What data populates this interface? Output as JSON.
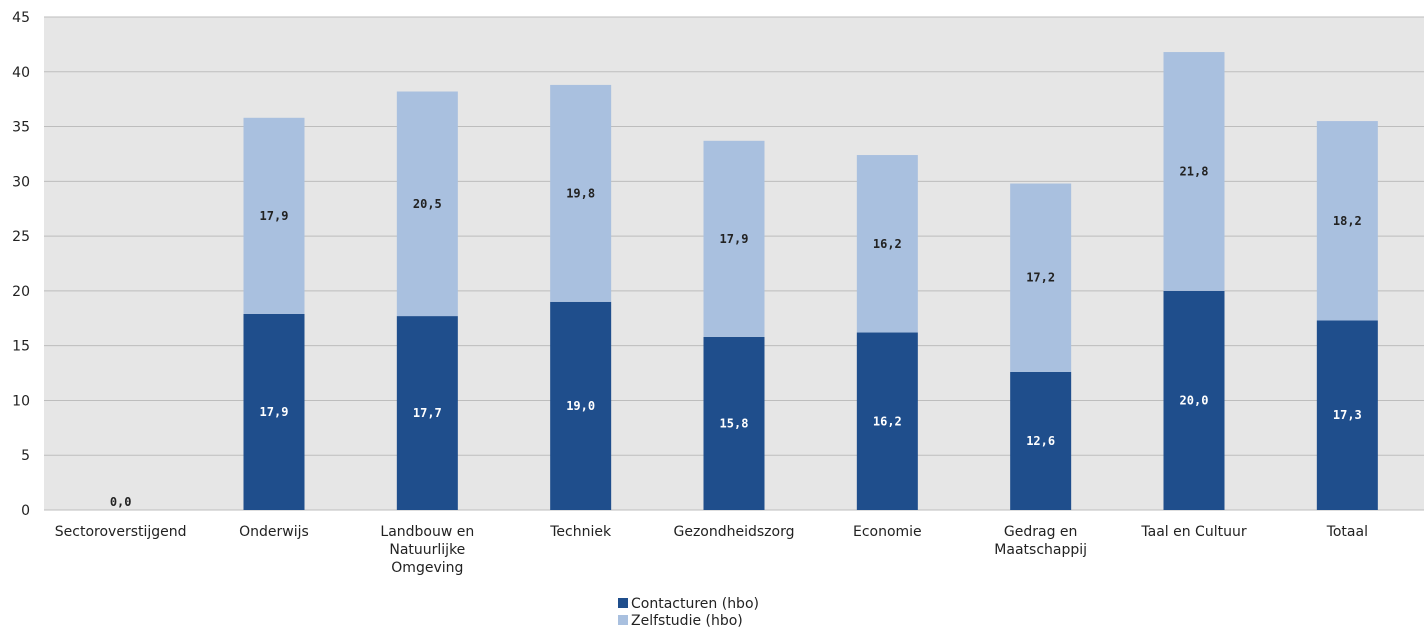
{
  "chart_data": {
    "type": "bar",
    "stacked": true,
    "categories": [
      "Sectoroverstijgend",
      "Onderwijs",
      "Landbouw en Natuurlijke Omgeving",
      "Techniek",
      "Gezondheidszorg",
      "Economie",
      "Gedrag en Maatschappij",
      "Taal en Cultuur",
      "Totaal"
    ],
    "category_lines": [
      [
        "Sectoroverstijgend"
      ],
      [
        "Onderwijs"
      ],
      [
        "Landbouw en",
        "Natuurlijke",
        "Omgeving"
      ],
      [
        "Techniek"
      ],
      [
        "Gezondheidszorg"
      ],
      [
        "Economie"
      ],
      [
        "Gedrag en",
        "Maatschappij"
      ],
      [
        "Taal en Cultuur"
      ],
      [
        "Totaal"
      ]
    ],
    "series": [
      {
        "name": "Contacturen (hbo)",
        "color": "#1f4e8c",
        "label_color": "#ffffff",
        "values": [
          0.0,
          17.9,
          17.7,
          19.0,
          15.8,
          16.2,
          12.6,
          20.0,
          17.3
        ],
        "labels": [
          "0,0",
          "17,9",
          "17,7",
          "19,0",
          "15,8",
          "16,2",
          "12,6",
          "20,0",
          "17,3"
        ]
      },
      {
        "name": "Zelfstudie (hbo)",
        "color": "#a9c0df",
        "label_color": "#222222",
        "values": [
          0.0,
          17.9,
          20.5,
          19.8,
          17.9,
          16.2,
          17.2,
          21.8,
          18.2
        ],
        "labels": [
          "",
          "17,9",
          "20,5",
          "19,8",
          "17,9",
          "16,2",
          "17,2",
          "21,8",
          "18,2"
        ]
      }
    ],
    "yticks": [
      "0",
      "5",
      "10",
      "15",
      "20",
      "25",
      "30",
      "35",
      "40",
      "45"
    ],
    "ylim": [
      0,
      45
    ],
    "grid": true,
    "plot_background": "#e6e6e6",
    "legend_position": "bottom-center",
    "title": "",
    "xlabel": "",
    "ylabel": ""
  }
}
